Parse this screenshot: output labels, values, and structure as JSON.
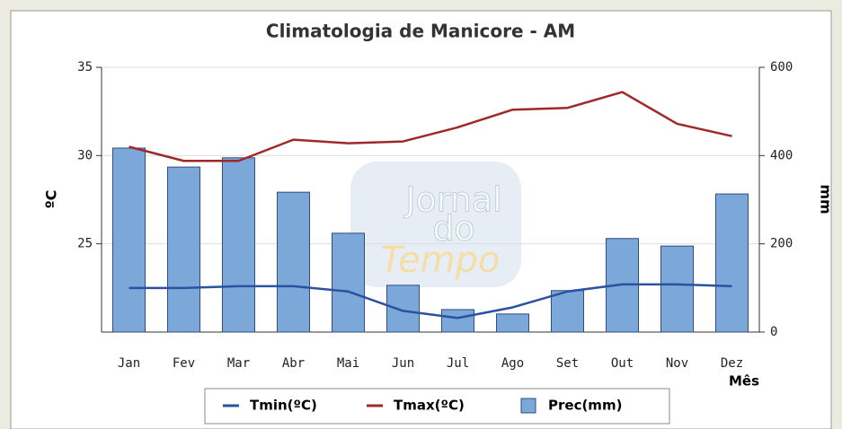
{
  "chart_data": {
    "type": "bar",
    "title": "Climatologia de Manicore - AM",
    "watermark": [
      "Jornal",
      "do",
      "Tempo"
    ],
    "categories": [
      "Jan",
      "Fev",
      "Mar",
      "Abr",
      "Mai",
      "Jun",
      "Jul",
      "Ago",
      "Set",
      "Out",
      "Nov",
      "Dez"
    ],
    "x_label": "Mês",
    "y_label": "ºC",
    "y2_label": "mm",
    "ylim": [
      20,
      35
    ],
    "yticks": [
      25,
      30,
      35
    ],
    "y2lim": [
      0,
      600
    ],
    "y2ticks": [
      0,
      200,
      400,
      600
    ],
    "grid": true,
    "series": [
      {
        "name": "Tmin(ºC)",
        "type": "line",
        "color": "#2a52a0",
        "values": [
          22.5,
          22.5,
          22.6,
          22.6,
          22.3,
          21.2,
          20.8,
          21.4,
          22.3,
          22.7,
          22.7,
          22.6
        ]
      },
      {
        "name": "Tmax(ºC)",
        "type": "line",
        "color": "#a0282a",
        "values": [
          30.5,
          29.7,
          29.7,
          30.9,
          30.7,
          30.8,
          31.6,
          32.6,
          32.7,
          33.6,
          31.8,
          31.1
        ]
      },
      {
        "name": "Prec(mm)",
        "type": "bar",
        "axis": "y2",
        "color": "#7ba7d9",
        "values": [
          417,
          374,
          395,
          317,
          224,
          106,
          51,
          41,
          94,
          212,
          195,
          313
        ]
      }
    ]
  }
}
